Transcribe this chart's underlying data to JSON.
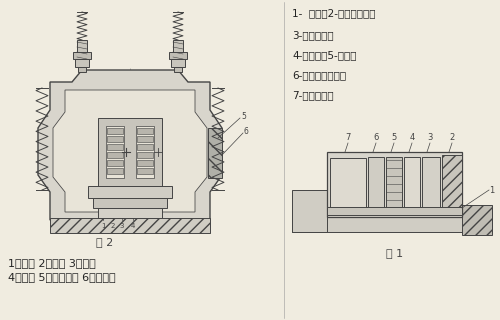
{
  "bg_color": "#f0ece0",
  "line_color": "#444444",
  "text_labels_right": [
    "1-  机座；2-机电磁鐵芯；",
    "3-共振弹簧；",
    "4-振动体；5-线圈；",
    "6-硬橡胶冲击块；",
    "7-调整螺栓；"
  ],
  "text_labels_bottom_line1": "1、鐵芯 2、衡鐵 3、线圈",
  "text_labels_bottom_line2": "4、机座 5、共振弹簧 6、振动体",
  "fig2_label": "图 2",
  "fig1_label": "图 1"
}
